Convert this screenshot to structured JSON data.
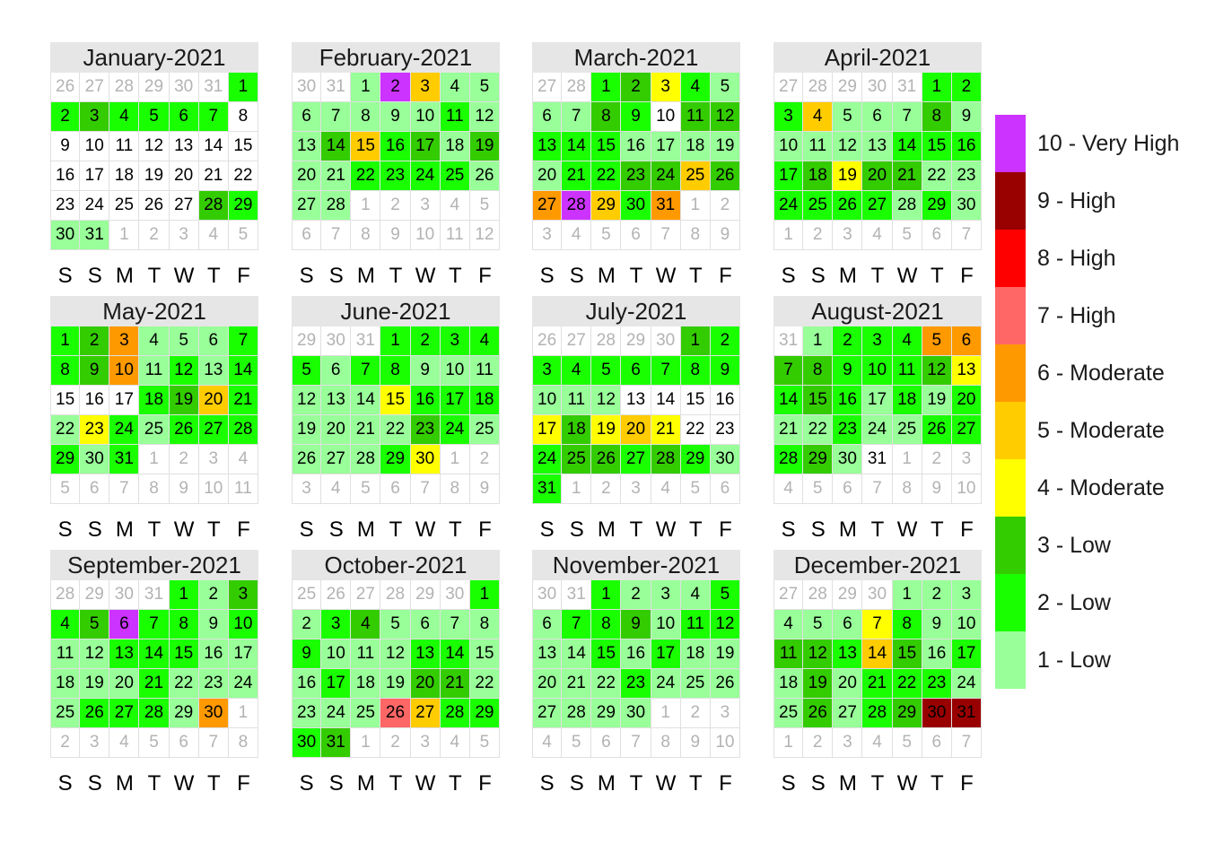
{
  "weekdays": [
    "S",
    "S",
    "M",
    "T",
    "W",
    "T",
    "F"
  ],
  "levels": {
    "1": {
      "label": "1 - Low",
      "color": "#99ff99"
    },
    "2": {
      "label": "2 - Low",
      "color": "#1aff00"
    },
    "3": {
      "label": "3 - Low",
      "color": "#33cc00"
    },
    "4": {
      "label": "4 - Moderate",
      "color": "#ffff00"
    },
    "5": {
      "label": "5 - Moderate",
      "color": "#ffcc00"
    },
    "6": {
      "label": "6 - Moderate",
      "color": "#ff9900"
    },
    "7": {
      "label": "7 - High",
      "color": "#ff6666"
    },
    "8": {
      "label": "8 - High",
      "color": "#ff0000"
    },
    "9": {
      "label": "9 - High",
      "color": "#990000"
    },
    "10": {
      "label": "10 - Very High",
      "color": "#cc33ff"
    }
  },
  "legend_order": [
    "10",
    "9",
    "8",
    "7",
    "6",
    "5",
    "4",
    "3",
    "2",
    "1"
  ],
  "chart_data": {
    "type": "heatmap",
    "months": [
      {
        "title": "January-2021",
        "start_weekday": 6,
        "days_in_month": 31,
        "prev_month_days": 31,
        "levels": [
          2,
          2,
          3,
          2,
          2,
          2,
          2,
          0,
          0,
          0,
          0,
          0,
          0,
          0,
          0,
          0,
          0,
          0,
          0,
          0,
          0,
          0,
          0,
          0,
          0,
          0,
          0,
          3,
          2,
          1,
          1
        ]
      },
      {
        "title": "February-2021",
        "start_weekday": 2,
        "days_in_month": 28,
        "prev_month_days": 31,
        "levels": [
          1,
          10,
          5,
          1,
          1,
          1,
          1,
          1,
          1,
          1,
          2,
          1,
          1,
          3,
          5,
          2,
          3,
          1,
          3,
          1,
          1,
          2,
          2,
          2,
          2,
          1,
          1,
          1
        ]
      },
      {
        "title": "March-2021",
        "start_weekday": 2,
        "days_in_month": 31,
        "prev_month_days": 28,
        "levels": [
          2,
          3,
          4,
          2,
          1,
          1,
          1,
          3,
          2,
          0,
          3,
          3,
          2,
          2,
          2,
          1,
          1,
          1,
          1,
          1,
          2,
          2,
          3,
          3,
          5,
          3,
          6,
          10,
          5,
          2,
          6
        ]
      },
      {
        "title": "April-2021",
        "start_weekday": 5,
        "days_in_month": 30,
        "prev_month_days": 31,
        "levels": [
          2,
          2,
          2,
          5,
          1,
          1,
          1,
          3,
          1,
          1,
          1,
          1,
          1,
          2,
          2,
          2,
          2,
          3,
          4,
          3,
          3,
          1,
          1,
          2,
          2,
          2,
          2,
          1,
          2,
          1
        ]
      },
      {
        "title": "May-2021",
        "start_weekday": 0,
        "days_in_month": 31,
        "prev_month_days": 30,
        "levels": [
          2,
          3,
          6,
          1,
          1,
          1,
          2,
          2,
          3,
          6,
          1,
          2,
          1,
          2,
          0,
          0,
          0,
          2,
          3,
          5,
          2,
          1,
          4,
          2,
          1,
          2,
          2,
          2,
          2,
          1,
          2
        ]
      },
      {
        "title": "June-2021",
        "start_weekday": 3,
        "days_in_month": 30,
        "prev_month_days": 31,
        "levels": [
          2,
          2,
          2,
          2,
          2,
          1,
          2,
          2,
          1,
          1,
          1,
          1,
          1,
          1,
          4,
          2,
          2,
          2,
          1,
          1,
          1,
          1,
          3,
          2,
          1,
          1,
          1,
          1,
          2,
          4
        ]
      },
      {
        "title": "July-2021",
        "start_weekday": 5,
        "days_in_month": 31,
        "prev_month_days": 30,
        "levels": [
          3,
          2,
          2,
          2,
          2,
          2,
          2,
          2,
          2,
          1,
          1,
          1,
          0,
          0,
          0,
          0,
          4,
          3,
          4,
          5,
          4,
          0,
          0,
          2,
          3,
          3,
          2,
          3,
          2,
          1,
          2
        ]
      },
      {
        "title": "August-2021",
        "start_weekday": 1,
        "days_in_month": 31,
        "prev_month_days": 31,
        "levels": [
          1,
          2,
          2,
          2,
          6,
          6,
          3,
          3,
          2,
          2,
          2,
          3,
          4,
          2,
          3,
          2,
          1,
          2,
          1,
          2,
          1,
          1,
          2,
          1,
          1,
          2,
          2,
          2,
          3,
          1,
          0
        ]
      },
      {
        "title": "September-2021",
        "start_weekday": 4,
        "days_in_month": 30,
        "prev_month_days": 31,
        "levels": [
          2,
          1,
          3,
          2,
          3,
          10,
          2,
          2,
          1,
          2,
          1,
          1,
          2,
          2,
          2,
          1,
          1,
          1,
          1,
          1,
          2,
          1,
          1,
          1,
          1,
          2,
          2,
          2,
          1,
          6
        ]
      },
      {
        "title": "October-2021",
        "start_weekday": 6,
        "days_in_month": 31,
        "prev_month_days": 30,
        "levels": [
          2,
          1,
          2,
          3,
          1,
          1,
          1,
          1,
          2,
          1,
          1,
          1,
          2,
          2,
          1,
          1,
          2,
          1,
          1,
          3,
          3,
          1,
          1,
          1,
          1,
          7,
          5,
          2,
          2,
          2,
          3
        ]
      },
      {
        "title": "November-2021",
        "start_weekday": 2,
        "days_in_month": 30,
        "prev_month_days": 31,
        "levels": [
          2,
          1,
          1,
          1,
          2,
          1,
          2,
          2,
          3,
          1,
          2,
          2,
          1,
          1,
          2,
          1,
          2,
          1,
          1,
          1,
          1,
          1,
          2,
          1,
          1,
          1,
          1,
          1,
          1,
          1
        ]
      },
      {
        "title": "December-2021",
        "start_weekday": 4,
        "days_in_month": 31,
        "prev_month_days": 30,
        "levels": [
          1,
          1,
          1,
          1,
          1,
          1,
          4,
          2,
          1,
          1,
          3,
          3,
          2,
          5,
          3,
          1,
          2,
          1,
          3,
          1,
          2,
          2,
          2,
          1,
          1,
          3,
          1,
          2,
          3,
          9,
          9
        ]
      }
    ]
  }
}
